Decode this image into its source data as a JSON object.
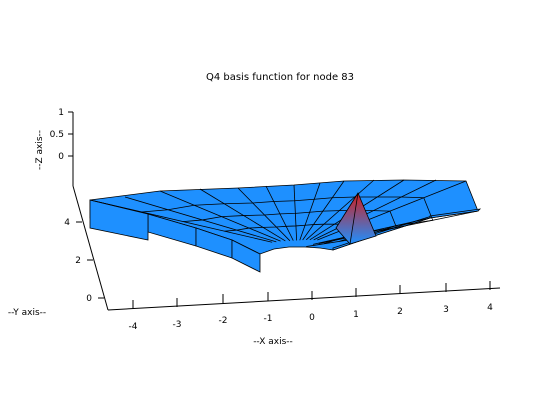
{
  "chart_data": {
    "type": "surface",
    "title": "Q4 basis function for node 83",
    "xlabel": "--X axis--",
    "ylabel": "--Y axis--",
    "zlabel": "--Z axis--",
    "x_ticks": [
      "-4",
      "-3",
      "-2",
      "-1",
      "0",
      "1",
      "2",
      "3",
      "4"
    ],
    "y_ticks": [
      "0",
      "2",
      "4"
    ],
    "z_ticks": [
      "0",
      "0.5",
      "1"
    ],
    "xlim": [
      -4.5,
      4.5
    ],
    "ylim": [
      0,
      4.5
    ],
    "zlim": [
      0,
      1
    ],
    "peak_node": 83,
    "peak_x": 1,
    "peak_value": 1,
    "surface_color": "#1e90ff",
    "peak_color": "#d21e1e",
    "grid": false
  }
}
